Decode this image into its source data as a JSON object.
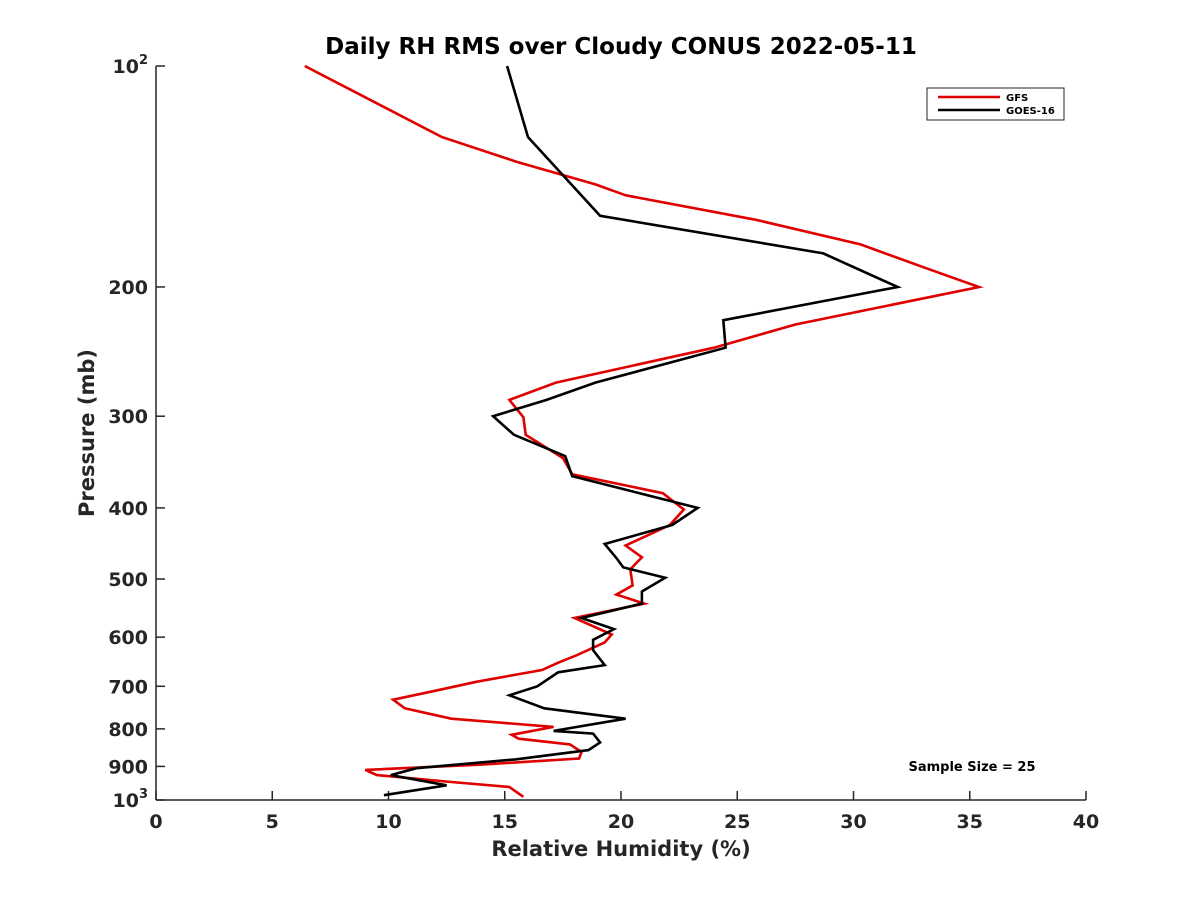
{
  "chart_data": {
    "type": "line",
    "title": "Daily RH RMS over Cloudy CONUS 2022-05-11",
    "xlabel": "Relative Humidity (%)",
    "ylabel": "Pressure (mb)",
    "xlim": [
      0,
      40
    ],
    "ylim": [
      100,
      1000
    ],
    "y_scale": "log",
    "y_reversed": true,
    "grid": false,
    "legend_position": "top-right",
    "x_ticks": [
      "0",
      "5",
      "10",
      "15",
      "20",
      "25",
      "30",
      "35",
      "40"
    ],
    "y_ticks": [
      {
        "value": 100,
        "label": "10",
        "sup": "2"
      },
      {
        "value": 200,
        "label": "200",
        "sup": ""
      },
      {
        "value": 300,
        "label": "300",
        "sup": ""
      },
      {
        "value": 400,
        "label": "400",
        "sup": ""
      },
      {
        "value": 500,
        "label": "500",
        "sup": ""
      },
      {
        "value": 600,
        "label": "600",
        "sup": ""
      },
      {
        "value": 700,
        "label": "700",
        "sup": ""
      },
      {
        "value": 800,
        "label": "800",
        "sup": ""
      },
      {
        "value": 900,
        "label": "900",
        "sup": ""
      },
      {
        "value": 1000,
        "label": "10",
        "sup": "3"
      }
    ],
    "annotation": "Sample Size = 25",
    "series": [
      {
        "name": "GFS",
        "color": "#e00000",
        "points": [
          [
            6.4,
            100
          ],
          [
            12.3,
            125
          ],
          [
            15.5,
            135
          ],
          [
            18.9,
            145
          ],
          [
            20.2,
            150
          ],
          [
            25.8,
            162
          ],
          [
            30.3,
            175
          ],
          [
            33.0,
            188
          ],
          [
            35.4,
            200
          ],
          [
            27.5,
            225
          ],
          [
            24.0,
            242
          ],
          [
            17.2,
            270
          ],
          [
            15.2,
            285
          ],
          [
            15.8,
            301
          ],
          [
            15.9,
            318
          ],
          [
            17.5,
            342
          ],
          [
            17.9,
            360
          ],
          [
            21.8,
            382
          ],
          [
            22.7,
            402
          ],
          [
            22.1,
            422
          ],
          [
            20.2,
            450
          ],
          [
            20.9,
            467
          ],
          [
            20.4,
            485
          ],
          [
            20.5,
            510
          ],
          [
            19.8,
            525
          ],
          [
            21.0,
            540
          ],
          [
            18.0,
            565
          ],
          [
            19.6,
            595
          ],
          [
            19.3,
            610
          ],
          [
            18.1,
            635
          ],
          [
            17.3,
            650
          ],
          [
            16.6,
            665
          ],
          [
            13.8,
            690
          ],
          [
            12.0,
            710
          ],
          [
            10.2,
            730
          ],
          [
            10.7,
            750
          ],
          [
            12.7,
            775
          ],
          [
            17.1,
            795
          ],
          [
            15.3,
            815
          ],
          [
            15.6,
            825
          ],
          [
            17.8,
            840
          ],
          [
            18.3,
            860
          ],
          [
            18.2,
            878
          ],
          [
            14.0,
            895
          ],
          [
            9.0,
            910
          ],
          [
            9.5,
            925
          ],
          [
            12.7,
            945
          ],
          [
            15.2,
            960
          ],
          [
            15.5,
            975
          ],
          [
            15.8,
            990
          ]
        ]
      },
      {
        "name": "GOES-16",
        "color": "#000000",
        "points": [
          [
            15.1,
            100
          ],
          [
            16.0,
            125
          ],
          [
            19.1,
            160
          ],
          [
            28.7,
            180
          ],
          [
            31.9,
            200
          ],
          [
            24.4,
            222
          ],
          [
            24.5,
            242
          ],
          [
            18.9,
            270
          ],
          [
            16.8,
            285
          ],
          [
            14.5,
            300
          ],
          [
            15.4,
            318
          ],
          [
            17.6,
            340
          ],
          [
            17.9,
            362
          ],
          [
            20.8,
            382
          ],
          [
            23.3,
            400
          ],
          [
            22.2,
            422
          ],
          [
            19.3,
            448
          ],
          [
            19.8,
            468
          ],
          [
            20.1,
            482
          ],
          [
            21.9,
            498
          ],
          [
            20.9,
            520
          ],
          [
            20.9,
            540
          ],
          [
            18.3,
            565
          ],
          [
            19.7,
            585
          ],
          [
            18.8,
            605
          ],
          [
            18.8,
            625
          ],
          [
            19.3,
            655
          ],
          [
            17.3,
            670
          ],
          [
            16.4,
            700
          ],
          [
            15.2,
            720
          ],
          [
            16.7,
            750
          ],
          [
            20.2,
            775
          ],
          [
            17.1,
            805
          ],
          [
            18.8,
            812
          ],
          [
            19.1,
            835
          ],
          [
            18.6,
            855
          ],
          [
            15.5,
            880
          ],
          [
            11.2,
            905
          ],
          [
            10.1,
            925
          ],
          [
            12.5,
            955
          ],
          [
            9.8,
            985
          ]
        ]
      }
    ]
  }
}
